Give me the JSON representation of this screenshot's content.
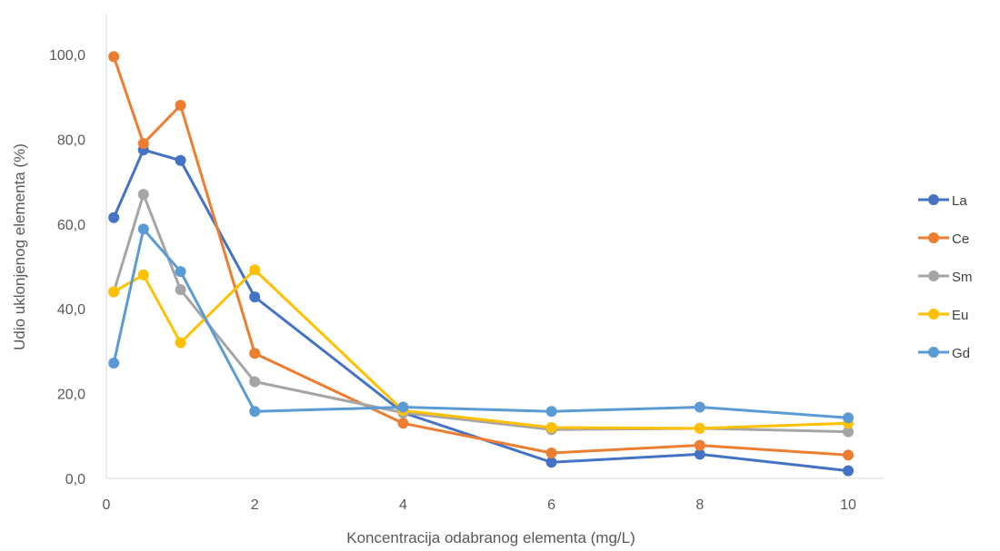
{
  "chart_data": {
    "type": "line",
    "title": "",
    "xlabel": "Koncentracija odabranog elementa (mg/L)",
    "ylabel": "Udio uklonjenog elementa (%)",
    "x": [
      0.1,
      0.5,
      1,
      2,
      4,
      6,
      8,
      10
    ],
    "x_ticks": [
      "0",
      "2",
      "4",
      "6",
      "8",
      "10"
    ],
    "y_ticks": [
      "0,0",
      "20,0",
      "40,0",
      "60,0",
      "80,0",
      "100,0"
    ],
    "xlim": [
      0,
      10
    ],
    "ylim": [
      0,
      100
    ],
    "grid": false,
    "legend_position": "right",
    "series": [
      {
        "name": "La",
        "color": "#4472C4",
        "values": [
          61.5,
          77.5,
          75.0,
          42.8,
          15.5,
          3.8,
          5.7,
          1.8
        ]
      },
      {
        "name": "Ce",
        "color": "#ED7D31",
        "values": [
          99.5,
          79.0,
          88.0,
          29.5,
          13.0,
          6.0,
          7.8,
          5.5
        ]
      },
      {
        "name": "Sm",
        "color": "#A5A5A5",
        "values": [
          44.0,
          67.0,
          44.5,
          22.8,
          15.5,
          11.5,
          11.8,
          11.0
        ]
      },
      {
        "name": "Eu",
        "color": "#FFC000",
        "values": [
          44.0,
          48.0,
          32.0,
          49.2,
          16.0,
          12.0,
          11.8,
          13.0
        ]
      },
      {
        "name": "Gd",
        "color": "#5B9BD5",
        "values": [
          27.2,
          58.8,
          48.8,
          15.8,
          16.8,
          15.8,
          16.8,
          14.3
        ]
      }
    ]
  }
}
